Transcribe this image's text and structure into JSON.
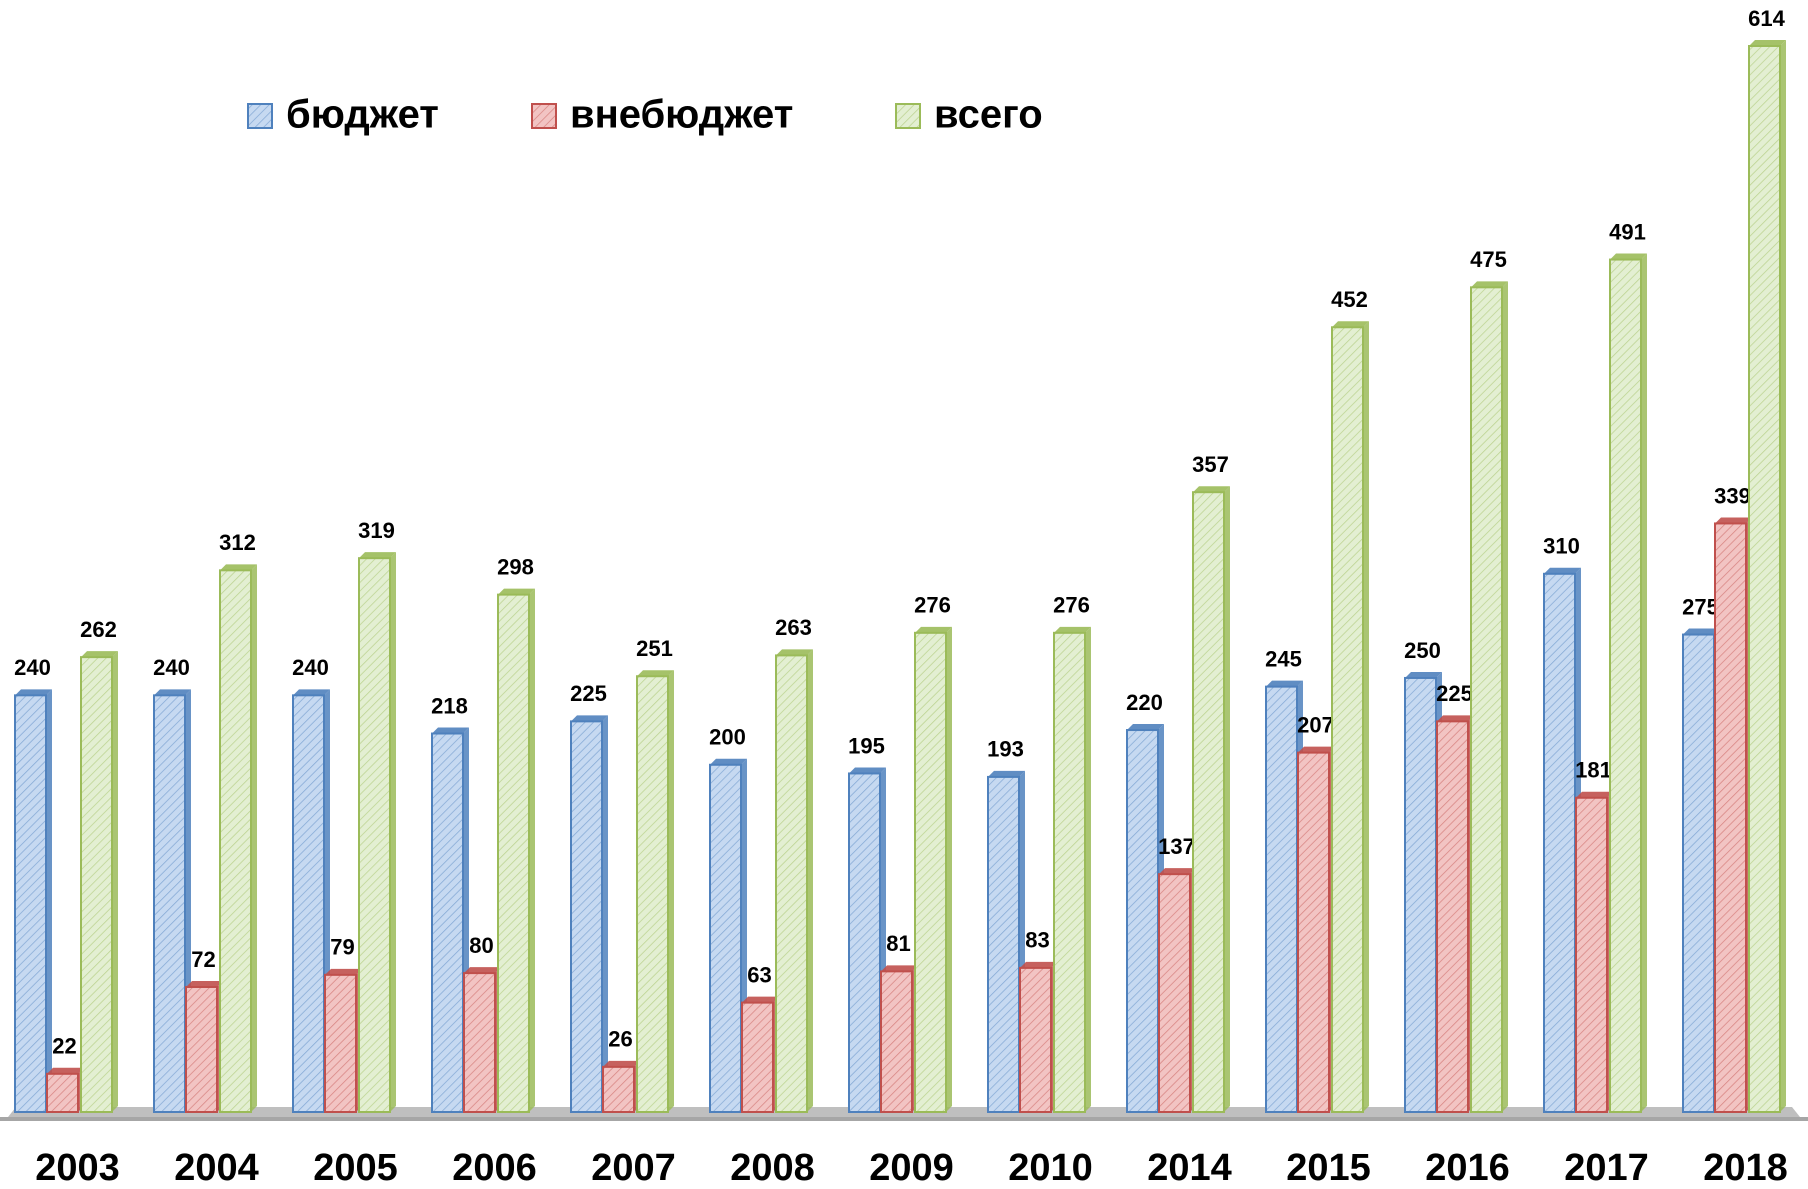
{
  "chart_data": {
    "type": "bar",
    "categories": [
      "2003",
      "2004",
      "2005",
      "2006",
      "2007",
      "2008",
      "2009",
      "2010",
      "2014",
      "2015",
      "2016",
      "2017",
      "2018"
    ],
    "series": [
      {
        "name": "бюджет",
        "color": "#4f81bd",
        "values": [
          240,
          240,
          240,
          218,
          225,
          200,
          195,
          193,
          220,
          245,
          250,
          310,
          275
        ]
      },
      {
        "name": "внебюджет",
        "color": "#c0504d",
        "values": [
          22,
          72,
          79,
          80,
          26,
          63,
          81,
          83,
          137,
          207,
          225,
          181,
          339
        ]
      },
      {
        "name": "всего",
        "color": "#9bbb59",
        "values": [
          262,
          312,
          319,
          298,
          251,
          263,
          276,
          276,
          357,
          452,
          475,
          491,
          614
        ]
      }
    ],
    "legend": "top-left"
  }
}
